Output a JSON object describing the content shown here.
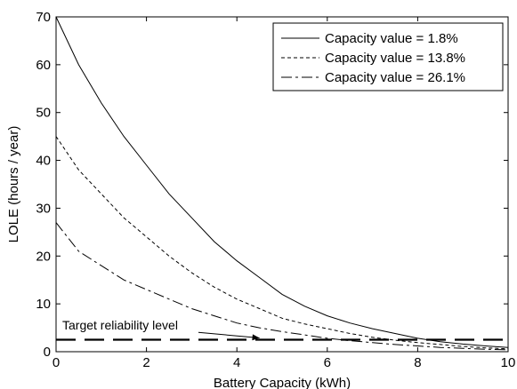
{
  "chart_data": {
    "type": "line",
    "xlabel": "Battery Capacity (kWh)",
    "ylabel": "LOLE (hours / year)",
    "xlim": [
      0,
      10
    ],
    "ylim": [
      0,
      70
    ],
    "xticks": [
      0,
      2,
      4,
      6,
      8,
      10
    ],
    "yticks": [
      0,
      10,
      20,
      30,
      40,
      50,
      60,
      70
    ],
    "grid": false,
    "legend_position": "top-right",
    "series": [
      {
        "name": "Capacity value = 1.8%",
        "line_style": "solid",
        "x": [
          0,
          0.5,
          1,
          1.5,
          2,
          2.5,
          3,
          3.5,
          4,
          4.5,
          5,
          5.5,
          6,
          6.5,
          7,
          7.5,
          8,
          8.5,
          9,
          9.5,
          10
        ],
        "y": [
          70,
          60,
          52,
          45,
          39,
          33,
          28,
          23,
          19,
          15.5,
          12,
          9.5,
          7.5,
          6,
          4.8,
          3.8,
          2.8,
          2.1,
          1.6,
          1.2,
          0.9
        ]
      },
      {
        "name": "Capacity value = 13.8%",
        "line_style": "dashed",
        "x": [
          0,
          0.5,
          1,
          1.5,
          2,
          2.5,
          3,
          3.5,
          4,
          4.5,
          5,
          5.5,
          6,
          6.5,
          7,
          7.5,
          8,
          8.5,
          9,
          9.5,
          10
        ],
        "y": [
          45,
          38,
          33,
          28,
          24,
          20,
          16.5,
          13.5,
          11,
          9,
          7,
          5.8,
          4.8,
          3.8,
          3,
          2.4,
          1.9,
          1.5,
          1.1,
          0.8,
          0.6
        ]
      },
      {
        "name": "Capacity value = 26.1%",
        "line_style": "dash-dot",
        "x": [
          0,
          0.5,
          1,
          1.5,
          2,
          2.5,
          3,
          3.5,
          4,
          4.5,
          5,
          5.5,
          6,
          6.5,
          7,
          7.5,
          8,
          8.5,
          9,
          9.5,
          10
        ],
        "y": [
          27,
          21,
          18,
          15,
          13,
          11,
          9,
          7.5,
          6,
          5,
          4.2,
          3.5,
          2.8,
          2.3,
          1.9,
          1.5,
          1.2,
          0.9,
          0.7,
          0.5,
          0.4
        ]
      }
    ],
    "reference_line": {
      "y": 2.5,
      "style": "long-dash"
    },
    "annotation": {
      "text": "Target reliability level",
      "arrow_to": {
        "x": 4.5,
        "y": 2.5
      }
    }
  }
}
